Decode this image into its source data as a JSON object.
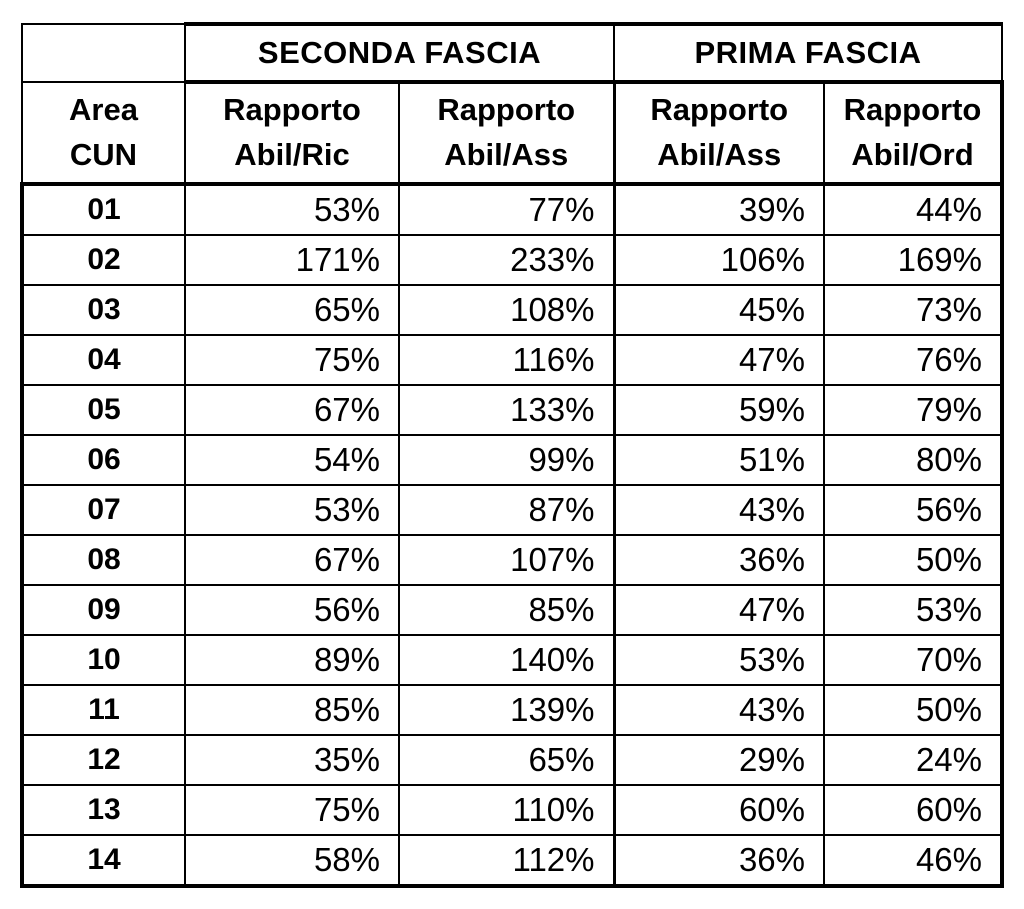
{
  "colors": {
    "border": "#000000",
    "text": "#000000",
    "background": "#ffffff"
  },
  "chart_data": {
    "type": "table",
    "groups": [
      {
        "label": "SECONDA FASCIA"
      },
      {
        "label": "PRIMA FASCIA"
      }
    ],
    "area_header": {
      "line1": "Area",
      "line2": "CUN"
    },
    "columns": [
      {
        "group": "SECONDA FASCIA",
        "line1": "Rapporto",
        "line2": "Abil/Ric"
      },
      {
        "group": "SECONDA FASCIA",
        "line1": "Rapporto",
        "line2": "Abil/Ass"
      },
      {
        "group": "PRIMA FASCIA",
        "line1": "Rapporto",
        "line2": "Abil/Ass"
      },
      {
        "group": "PRIMA FASCIA",
        "line1": "Rapporto",
        "line2": "Abil/Ord"
      }
    ],
    "rows": [
      {
        "area": "01",
        "values": [
          "53%",
          "77%",
          "39%",
          "44%"
        ]
      },
      {
        "area": "02",
        "values": [
          "171%",
          "233%",
          "106%",
          "169%"
        ]
      },
      {
        "area": "03",
        "values": [
          "65%",
          "108%",
          "45%",
          "73%"
        ]
      },
      {
        "area": "04",
        "values": [
          "75%",
          "116%",
          "47%",
          "76%"
        ]
      },
      {
        "area": "05",
        "values": [
          "67%",
          "133%",
          "59%",
          "79%"
        ]
      },
      {
        "area": "06",
        "values": [
          "54%",
          "99%",
          "51%",
          "80%"
        ]
      },
      {
        "area": "07",
        "values": [
          "53%",
          "87%",
          "43%",
          "56%"
        ]
      },
      {
        "area": "08",
        "values": [
          "67%",
          "107%",
          "36%",
          "50%"
        ]
      },
      {
        "area": "09",
        "values": [
          "56%",
          "85%",
          "47%",
          "53%"
        ]
      },
      {
        "area": "10",
        "values": [
          "89%",
          "140%",
          "53%",
          "70%"
        ]
      },
      {
        "area": "11",
        "values": [
          "85%",
          "139%",
          "43%",
          "50%"
        ]
      },
      {
        "area": "12",
        "values": [
          "35%",
          "65%",
          "29%",
          "24%"
        ]
      },
      {
        "area": "13",
        "values": [
          "75%",
          "110%",
          "60%",
          "60%"
        ]
      },
      {
        "area": "14",
        "values": [
          "58%",
          "112%",
          "36%",
          "46%"
        ]
      }
    ]
  }
}
